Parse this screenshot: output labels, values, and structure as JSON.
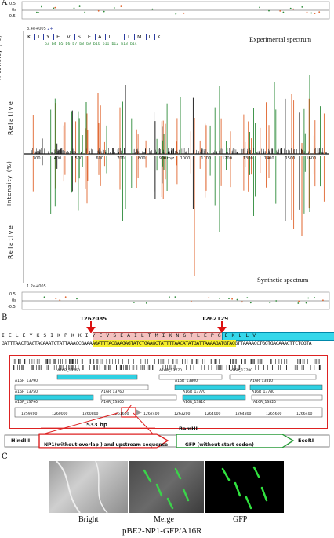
{
  "panel_a": {
    "label": "A",
    "title_top": "Experimental spectrum",
    "title_bottom": "Synthetic spectrum",
    "ylabel_word1": "Relative",
    "ylabel_word2": "Intensity (%)",
    "scale_top": "3.4e+005",
    "scale_bottom": "1.2e+005",
    "charge": "2+",
    "peptide": [
      "K",
      "I",
      "Y",
      "E",
      "V",
      "S",
      "E",
      "A",
      "I",
      "L",
      "T",
      "M",
      "I",
      "K"
    ],
    "b_ions": [
      "b3",
      "b4",
      "b5",
      "b6",
      "b7",
      "b8",
      "b9",
      "b10",
      "b11",
      "b12",
      "b13",
      "b14"
    ],
    "resid_ticks": [
      "0.5",
      "0s",
      "-0.5"
    ],
    "x_ticks": [
      "300",
      "400",
      "500",
      "600",
      "700",
      "800",
      "900",
      "1000",
      "1100",
      "1200",
      "1300",
      "1400",
      "1500",
      "1600"
    ],
    "x_unit": "m/z",
    "colors": {
      "orange": "#e0652e",
      "green": "#2e8b3a",
      "black": "#111111"
    }
  },
  "panel_b": {
    "label": "B",
    "pos_left": "1262085",
    "pos_right": "1262129",
    "aa_line": "I  E  L  E  Y  K  S  I  K  P  K  K  I  Y  E  V  S  E  A  I  L  T  M  I  K  N  G  T  L  E  P  G  E  K  L  L  V",
    "nt_line": "GATTTAACTGAGTACAAATCTATTAAACCGAAAAGATTTACGAAGAGTATCTGAAGCTATTTTAACATATGATTAAAAGATGTACGTTAAAACCTGGTGACAAACTTCTCGTA",
    "genes": [
      "A16R_13760",
      "A16R_13770",
      "A16R_13780",
      "A16R_13790",
      "A16R_13800",
      "A16R_13810",
      "A16R_13750",
      "A16R_13760",
      "A16R_13770",
      "A16R_13780",
      "A16R_13790",
      "A16R_13800",
      "A16R_13810",
      "A16R_13820"
    ],
    "coords": [
      "1259200",
      "1260000",
      "1260800",
      "1261600",
      "1262400",
      "1263200",
      "1264000",
      "1264800",
      "1265600",
      "1266400"
    ],
    "construct": {
      "hind": "HindIII",
      "bam": "BamHI",
      "eco": "EcoRI",
      "bp": "533 bp",
      "np1": "NP1(without overlap ) and upstream sequence",
      "gfp": "GFP (without start codon)"
    }
  },
  "panel_c": {
    "label": "C",
    "images": [
      "Bright",
      "Merge",
      "GFP"
    ],
    "caption": "pBE2-NP1-GFP/A16R"
  }
}
